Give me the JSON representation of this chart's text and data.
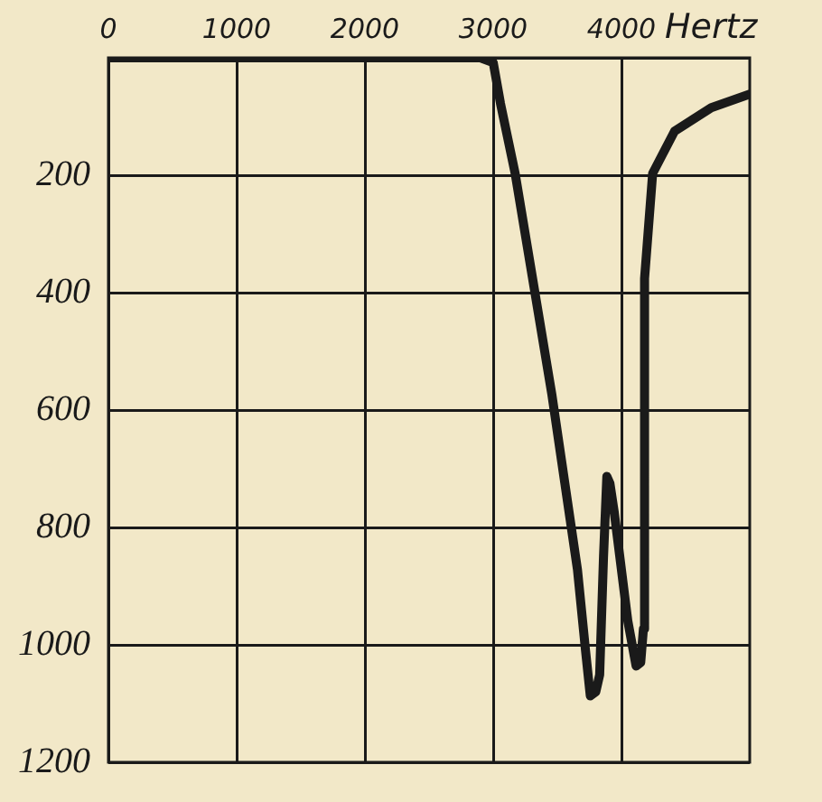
{
  "chart_data": {
    "type": "line",
    "xlabel": "Hertz",
    "x": [
      0,
      1000,
      2000,
      2900,
      3000,
      3057,
      3171,
      3457,
      3657,
      3720,
      3757,
      3800,
      3830,
      3860,
      3886,
      3910,
      3943,
      4050,
      4114,
      4150,
      4171,
      4180,
      4243,
      4414,
      4700,
      5000
    ],
    "series": [
      {
        "color": "#1a1a1a",
        "values": [
          0,
          0,
          0,
          0,
          8,
          78,
          197,
          573,
          872,
          1010,
          1087,
          1080,
          1051,
          850,
          713,
          725,
          773,
          960,
          1036,
          1030,
          973,
          376,
          197,
          125,
          85,
          62
        ]
      }
    ],
    "xlim": [
      0,
      5000
    ],
    "xticks": [
      0,
      1000,
      2000,
      3000,
      4000
    ],
    "ylim": [
      1200,
      0
    ],
    "yticks": [
      {
        "value": 0,
        "label": null
      },
      200,
      400,
      600,
      800,
      1000,
      1200
    ],
    "grid": true,
    "marker": "none",
    "line_style": "solid"
  }
}
